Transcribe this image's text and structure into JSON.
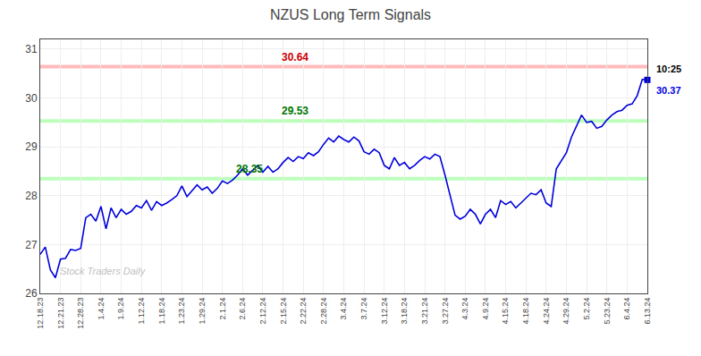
{
  "chart_data": {
    "type": "line",
    "title": "NZUS Long Term Signals",
    "categories": [
      "12.18.23",
      null,
      null,
      null,
      "12.21.23",
      null,
      null,
      null,
      "12.28.23",
      null,
      null,
      null,
      "1.4.24",
      null,
      null,
      null,
      "1.9.24",
      null,
      null,
      null,
      "1.12.24",
      null,
      null,
      null,
      "1.18.24",
      null,
      null,
      null,
      "1.23.24",
      null,
      null,
      null,
      "1.29.24",
      null,
      null,
      null,
      "2.1.24",
      null,
      null,
      null,
      "2.6.24",
      null,
      null,
      null,
      "2.12.24",
      null,
      null,
      null,
      "2.15.24",
      null,
      null,
      null,
      "2.22.24",
      null,
      null,
      null,
      "2.28.24",
      null,
      null,
      null,
      "3.4.24",
      null,
      null,
      null,
      "3.7.24",
      null,
      null,
      null,
      "3.12.24",
      null,
      null,
      null,
      "3.18.24",
      null,
      null,
      null,
      "3.21.24",
      null,
      null,
      null,
      "3.27.24",
      null,
      null,
      null,
      "4.3.24",
      null,
      null,
      null,
      "4.9.24",
      null,
      null,
      null,
      "4.15.24",
      null,
      null,
      null,
      "4.18.24",
      null,
      null,
      null,
      "4.24.24",
      null,
      null,
      null,
      "4.29.24",
      null,
      null,
      null,
      "5.2.24",
      null,
      null,
      null,
      "5.23.24",
      null,
      null,
      null,
      "6.4.24",
      null,
      null,
      null,
      "6.13.24"
    ],
    "values": [
      26.8,
      26.95,
      26.48,
      26.32,
      26.7,
      26.72,
      26.9,
      26.88,
      26.92,
      27.55,
      27.62,
      27.48,
      27.78,
      27.32,
      27.75,
      27.55,
      27.72,
      27.62,
      27.68,
      27.8,
      27.75,
      27.9,
      27.7,
      27.88,
      27.8,
      27.85,
      27.92,
      28.0,
      28.2,
      27.98,
      28.1,
      28.22,
      28.12,
      28.18,
      28.05,
      28.15,
      28.3,
      28.25,
      28.32,
      28.42,
      28.55,
      28.42,
      28.52,
      28.62,
      28.48,
      28.6,
      28.48,
      28.55,
      28.68,
      28.78,
      28.7,
      28.8,
      28.76,
      28.88,
      28.82,
      28.9,
      29.05,
      29.18,
      29.1,
      29.22,
      29.15,
      29.1,
      29.2,
      29.12,
      28.9,
      28.85,
      28.95,
      28.88,
      28.62,
      28.55,
      28.78,
      28.62,
      28.68,
      28.55,
      28.62,
      28.72,
      28.8,
      28.75,
      28.85,
      28.8,
      28.42,
      28.02,
      27.6,
      27.52,
      27.58,
      27.72,
      27.62,
      27.42,
      27.62,
      27.72,
      27.55,
      27.9,
      27.82,
      27.88,
      27.75,
      27.85,
      27.95,
      28.05,
      28.02,
      28.12,
      27.85,
      27.78,
      28.55,
      28.72,
      28.88,
      29.2,
      29.42,
      29.65,
      29.5,
      29.52,
      29.38,
      29.42,
      29.55,
      29.65,
      29.72,
      29.75,
      29.85,
      29.88,
      30.05,
      30.38,
      30.37
    ],
    "color": "#0000dd",
    "reference_lines": [
      {
        "value": 30.64,
        "label": "30.64",
        "color": "#ffbbbb",
        "label_color": "#cc0000"
      },
      {
        "value": 29.53,
        "label": "29.53",
        "color": "#bbffbb",
        "label_color": "#007700"
      },
      {
        "value": 28.35,
        "label": "28.35",
        "color": "#bbffbb",
        "label_color": "#007700"
      }
    ],
    "time_label": {
      "text": "10:25",
      "color": "#000000"
    },
    "price_label": {
      "text": "30.37",
      "color": "#0000dd"
    },
    "watermark": {
      "text": "Stock Traders Daily",
      "color": "#c0c0c0"
    },
    "ylim": [
      26.0,
      31.2
    ],
    "yticks": [
      26,
      27,
      28,
      29,
      30,
      31
    ],
    "grid": true
  }
}
